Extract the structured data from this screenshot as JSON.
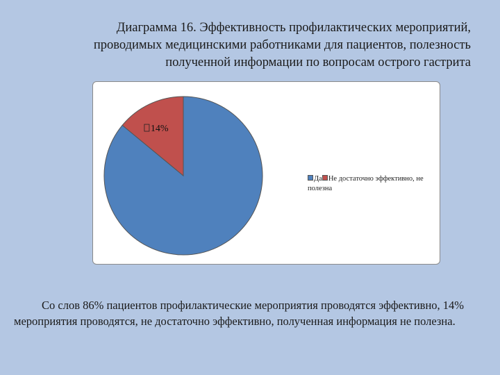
{
  "title_lines": [
    "Диаграмма 16. Эффективность профилактических мероприятий,",
    "проводимых медицинскими работниками для пациентов, полезность",
    "полученной информации по вопросам острого гастрита"
  ],
  "chart_data": {
    "type": "pie",
    "title": "Диаграмма 16. Эффективность профилактических мероприятий, проводимых медицинскими работниками для пациентов, полезность полученной информации по вопросам острого гастрита",
    "legend_position": "right",
    "slices": [
      {
        "label": "Да",
        "value": 86,
        "color": "#4f81bd"
      },
      {
        "label": "Не достаточно эффективно, не полезна",
        "value": 14,
        "color": "#c0504d"
      }
    ],
    "data_labels": [
      {
        "slice": 1,
        "text": "14%"
      }
    ]
  },
  "caption": "Со слов 86% пациентов профилактические мероприятия проводятся эффективно, 14% мероприятия проводятся, не достаточно эффективно, полученная информация не полезна."
}
